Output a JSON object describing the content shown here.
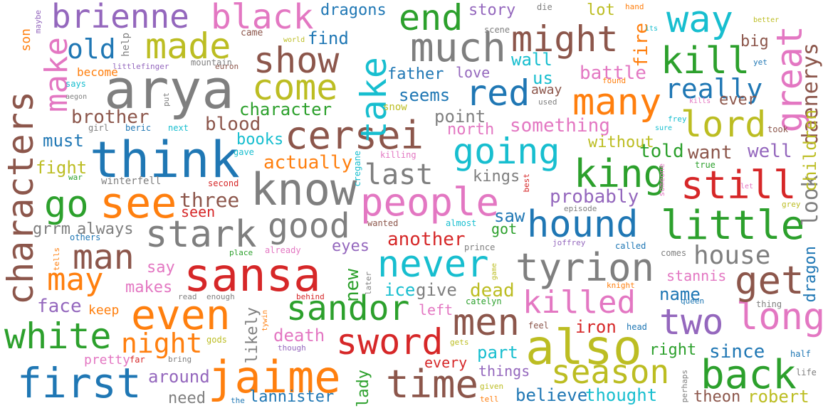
{
  "palette": {
    "blue": "#1f77b4",
    "orange": "#ff7f0e",
    "green": "#2ca02c",
    "red": "#d62728",
    "purple": "#9467bd",
    "brown": "#8c564b",
    "pink": "#e377c2",
    "gray": "#7f7f7f",
    "olive": "#bcbd22",
    "cyan": "#17becf"
  },
  "words": [
    {
      "text": "arya",
      "color": "gray"
    },
    {
      "text": "think",
      "color": "blue"
    },
    {
      "text": "sansa",
      "color": "red"
    },
    {
      "text": "also",
      "color": "olive"
    },
    {
      "text": "know",
      "color": "gray"
    },
    {
      "text": "even",
      "color": "orange"
    },
    {
      "text": "characters",
      "color": "brown"
    },
    {
      "text": "jaime",
      "color": "orange"
    },
    {
      "text": "first",
      "color": "blue"
    },
    {
      "text": "white",
      "color": "green"
    },
    {
      "text": "see",
      "color": "orange"
    },
    {
      "text": "people",
      "color": "pink"
    },
    {
      "text": "little",
      "color": "green"
    },
    {
      "text": "tyrion",
      "color": "gray"
    },
    {
      "text": "cersei",
      "color": "brown"
    },
    {
      "text": "much",
      "color": "gray"
    },
    {
      "text": "might",
      "color": "brown"
    },
    {
      "text": "show",
      "color": "brown"
    },
    {
      "text": "way",
      "color": "cyan"
    },
    {
      "text": "great",
      "color": "pink"
    },
    {
      "text": "kill",
      "color": "green"
    },
    {
      "text": "many",
      "color": "orange"
    },
    {
      "text": "lord",
      "color": "olive"
    },
    {
      "text": "still",
      "color": "red"
    },
    {
      "text": "king",
      "color": "green"
    },
    {
      "text": "going",
      "color": "cyan"
    },
    {
      "text": "take",
      "color": "cyan"
    },
    {
      "text": "red",
      "color": "blue"
    },
    {
      "text": "come",
      "color": "olive"
    },
    {
      "text": "made",
      "color": "olive"
    },
    {
      "text": "black",
      "color": "pink"
    },
    {
      "text": "brienne",
      "color": "purple"
    },
    {
      "text": "end",
      "color": "green"
    },
    {
      "text": "make",
      "color": "pink"
    },
    {
      "text": "old",
      "color": "blue"
    },
    {
      "text": "stark",
      "color": "gray"
    },
    {
      "text": "good",
      "color": "gray"
    },
    {
      "text": "go",
      "color": "green"
    },
    {
      "text": "man",
      "color": "brown"
    },
    {
      "text": "may",
      "color": "orange"
    },
    {
      "text": "hound",
      "color": "blue"
    },
    {
      "text": "never",
      "color": "cyan"
    },
    {
      "text": "sandor",
      "color": "green"
    },
    {
      "text": "sword",
      "color": "red"
    },
    {
      "text": "men",
      "color": "brown"
    },
    {
      "text": "time",
      "color": "brown"
    },
    {
      "text": "season",
      "color": "olive"
    },
    {
      "text": "back",
      "color": "green"
    },
    {
      "text": "two",
      "color": "purple"
    },
    {
      "text": "long",
      "color": "pink"
    },
    {
      "text": "get",
      "color": "brown"
    },
    {
      "text": "killed",
      "color": "pink"
    },
    {
      "text": "look",
      "color": "gray"
    },
    {
      "text": "house",
      "color": "gray"
    },
    {
      "text": "night",
      "color": "orange"
    },
    {
      "text": "last",
      "color": "gray"
    },
    {
      "text": "really",
      "color": "blue"
    },
    {
      "text": "daenerys",
      "color": "brown"
    },
    {
      "text": "children",
      "color": "olive"
    },
    {
      "text": "dragons",
      "color": "blue"
    },
    {
      "text": "story",
      "color": "purple"
    },
    {
      "text": "lot",
      "color": "olive"
    },
    {
      "text": "fire",
      "color": "orange"
    },
    {
      "text": "big",
      "color": "brown"
    },
    {
      "text": "find",
      "color": "blue"
    },
    {
      "text": "wall",
      "color": "cyan"
    },
    {
      "text": "father",
      "color": "blue"
    },
    {
      "text": "love",
      "color": "purple"
    },
    {
      "text": "battle",
      "color": "pink"
    },
    {
      "text": "us",
      "color": "cyan"
    },
    {
      "text": "seems",
      "color": "blue"
    },
    {
      "text": "away",
      "color": "brown"
    },
    {
      "text": "ever",
      "color": "brown"
    },
    {
      "text": "character",
      "color": "green"
    },
    {
      "text": "brother",
      "color": "brown"
    },
    {
      "text": "blood",
      "color": "brown"
    },
    {
      "text": "point",
      "color": "gray"
    },
    {
      "text": "north",
      "color": "pink"
    },
    {
      "text": "something",
      "color": "pink"
    },
    {
      "text": "must",
      "color": "blue"
    },
    {
      "text": "books",
      "color": "cyan"
    },
    {
      "text": "without",
      "color": "olive"
    },
    {
      "text": "told",
      "color": "green"
    },
    {
      "text": "want",
      "color": "brown"
    },
    {
      "text": "well",
      "color": "purple"
    },
    {
      "text": "fight",
      "color": "olive"
    },
    {
      "text": "actually",
      "color": "orange"
    },
    {
      "text": "kings",
      "color": "gray"
    },
    {
      "text": "three",
      "color": "brown"
    },
    {
      "text": "seen",
      "color": "red"
    },
    {
      "text": "probably",
      "color": "purple"
    },
    {
      "text": "grrm",
      "color": "gray"
    },
    {
      "text": "always",
      "color": "gray"
    },
    {
      "text": "saw",
      "color": "blue"
    },
    {
      "text": "got",
      "color": "green"
    },
    {
      "text": "another",
      "color": "red"
    },
    {
      "text": "eyes",
      "color": "purple"
    },
    {
      "text": "say",
      "color": "pink"
    },
    {
      "text": "makes",
      "color": "pink"
    },
    {
      "text": "dragon",
      "color": "blue"
    },
    {
      "text": "stannis",
      "color": "pink"
    },
    {
      "text": "face",
      "color": "purple"
    },
    {
      "text": "keep",
      "color": "orange"
    },
    {
      "text": "new",
      "color": "green"
    },
    {
      "text": "ice",
      "color": "cyan"
    },
    {
      "text": "give",
      "color": "gray"
    },
    {
      "text": "dead",
      "color": "olive"
    },
    {
      "text": "left",
      "color": "pink"
    },
    {
      "text": "name",
      "color": "blue"
    },
    {
      "text": "likely",
      "color": "gray"
    },
    {
      "text": "iron",
      "color": "red"
    },
    {
      "text": "death",
      "color": "pink"
    },
    {
      "text": "part",
      "color": "cyan"
    },
    {
      "text": "right",
      "color": "green"
    },
    {
      "text": "since",
      "color": "blue"
    },
    {
      "text": "around",
      "color": "purple"
    },
    {
      "text": "pretty",
      "color": "pink"
    },
    {
      "text": "every",
      "color": "red"
    },
    {
      "text": "things",
      "color": "purple"
    },
    {
      "text": "lady",
      "color": "green"
    },
    {
      "text": "need",
      "color": "gray"
    },
    {
      "text": "lannister",
      "color": "blue"
    },
    {
      "text": "believe",
      "color": "blue"
    },
    {
      "text": "thought",
      "color": "cyan"
    },
    {
      "text": "theon",
      "color": "brown"
    },
    {
      "text": "robert",
      "color": "olive"
    },
    {
      "text": "son",
      "color": "orange"
    },
    {
      "text": "maybe",
      "color": "purple"
    },
    {
      "text": "help",
      "color": "gray"
    },
    {
      "text": "came",
      "color": "brown"
    },
    {
      "text": "world",
      "color": "olive"
    },
    {
      "text": "scene",
      "color": "gray"
    },
    {
      "text": "die",
      "color": "gray"
    },
    {
      "text": "hand",
      "color": "orange"
    },
    {
      "text": "better",
      "color": "olive"
    },
    {
      "text": "its",
      "color": "cyan"
    },
    {
      "text": "littlefinger",
      "color": "purple"
    },
    {
      "text": "mountain",
      "color": "gray"
    },
    {
      "text": "euron",
      "color": "brown"
    },
    {
      "text": "become",
      "color": "orange"
    },
    {
      "text": "yet",
      "color": "blue"
    },
    {
      "text": "says",
      "color": "cyan"
    },
    {
      "text": "aegon",
      "color": "gray"
    },
    {
      "text": "put",
      "color": "gray"
    },
    {
      "text": "found",
      "color": "orange"
    },
    {
      "text": "used",
      "color": "gray"
    },
    {
      "text": "kills",
      "color": "pink"
    },
    {
      "text": "snow",
      "color": "olive"
    },
    {
      "text": "frey",
      "color": "cyan"
    },
    {
      "text": "sure",
      "color": "cyan"
    },
    {
      "text": "took",
      "color": "brown"
    },
    {
      "text": "girl",
      "color": "gray"
    },
    {
      "text": "beric",
      "color": "blue"
    },
    {
      "text": "next",
      "color": "cyan"
    },
    {
      "text": "gave",
      "color": "cyan"
    },
    {
      "text": "killing",
      "color": "pink"
    },
    {
      "text": "cregane",
      "color": "cyan"
    },
    {
      "text": "war",
      "color": "green"
    },
    {
      "text": "winterfell",
      "color": "gray"
    },
    {
      "text": "second",
      "color": "red"
    },
    {
      "text": "best",
      "color": "red"
    },
    {
      "text": "someone",
      "color": "pink"
    },
    {
      "text": "true",
      "color": "green"
    },
    {
      "text": "let",
      "color": "pink"
    },
    {
      "text": "grey",
      "color": "olive"
    },
    {
      "text": "episode",
      "color": "gray"
    },
    {
      "text": "wanted",
      "color": "brown"
    },
    {
      "text": "almost",
      "color": "cyan"
    },
    {
      "text": "others",
      "color": "blue"
    },
    {
      "text": "tells",
      "color": "orange"
    },
    {
      "text": "place",
      "color": "green"
    },
    {
      "text": "already",
      "color": "pink"
    },
    {
      "text": "prince",
      "color": "gray"
    },
    {
      "text": "joffrey",
      "color": "purple"
    },
    {
      "text": "called",
      "color": "blue"
    },
    {
      "text": "comes",
      "color": "gray"
    },
    {
      "text": "later",
      "color": "gray"
    },
    {
      "text": "game",
      "color": "olive"
    },
    {
      "text": "read",
      "color": "gray"
    },
    {
      "text": "enough",
      "color": "gray"
    },
    {
      "text": "behind",
      "color": "red"
    },
    {
      "text": "catelyn",
      "color": "green"
    },
    {
      "text": "knight",
      "color": "orange"
    },
    {
      "text": "queen",
      "color": "blue"
    },
    {
      "text": "thing",
      "color": "gray"
    },
    {
      "text": "tywin",
      "color": "orange"
    },
    {
      "text": "feel",
      "color": "brown"
    },
    {
      "text": "head",
      "color": "blue"
    },
    {
      "text": "gods",
      "color": "olive"
    },
    {
      "text": "though",
      "color": "purple"
    },
    {
      "text": "gets",
      "color": "olive"
    },
    {
      "text": "half",
      "color": "blue"
    },
    {
      "text": "far",
      "color": "red"
    },
    {
      "text": "bring",
      "color": "gray"
    },
    {
      "text": "given",
      "color": "olive"
    },
    {
      "text": "perhaps",
      "color": "gray"
    },
    {
      "text": "life",
      "color": "gray"
    },
    {
      "text": "the",
      "color": "blue"
    },
    {
      "text": "tell",
      "color": "orange"
    }
  ]
}
